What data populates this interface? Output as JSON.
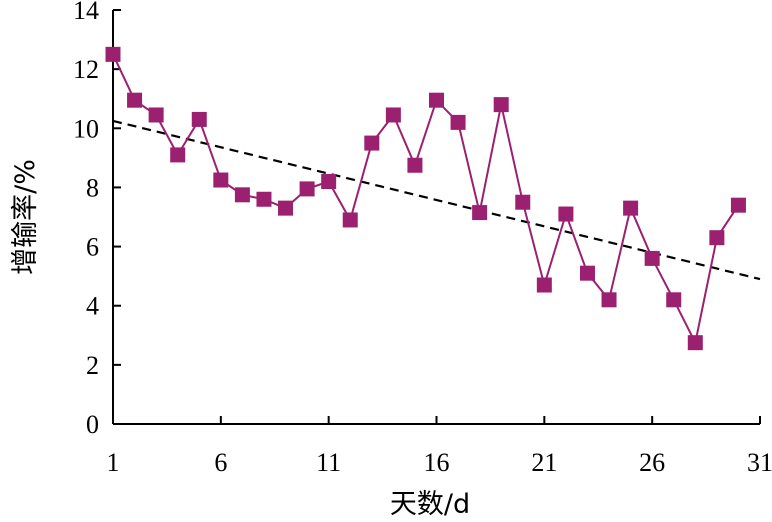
{
  "chart_data": {
    "type": "line",
    "xlabel": "天数/d",
    "ylabel": "增输率/%",
    "xlim": [
      1,
      31
    ],
    "ylim": [
      0,
      14
    ],
    "xticks": [
      1,
      6,
      11,
      16,
      21,
      26,
      31
    ],
    "yticks": [
      0,
      2,
      4,
      6,
      8,
      10,
      12,
      14
    ],
    "grid": false,
    "series": [
      {
        "marker": "square",
        "color": "#9b2070",
        "x": [
          1,
          2,
          3,
          4,
          5,
          6,
          7,
          8,
          9,
          10,
          11,
          12,
          13,
          14,
          15,
          16,
          17,
          18,
          19,
          20,
          21,
          22,
          23,
          24,
          25,
          26,
          27,
          28,
          29,
          30
        ],
        "y": [
          12.5,
          10.95,
          10.45,
          9.1,
          10.3,
          8.25,
          7.75,
          7.6,
          7.3,
          7.95,
          8.2,
          6.9,
          9.5,
          10.45,
          8.75,
          10.95,
          10.2,
          7.15,
          10.8,
          7.5,
          4.7,
          7.1,
          5.1,
          4.2,
          7.3,
          5.6,
          4.2,
          2.75,
          6.3,
          7.4
        ]
      }
    ],
    "trendline": {
      "style": "dashed",
      "color": "#000000",
      "x": [
        1,
        31
      ],
      "y": [
        10.25,
        4.9
      ]
    }
  }
}
